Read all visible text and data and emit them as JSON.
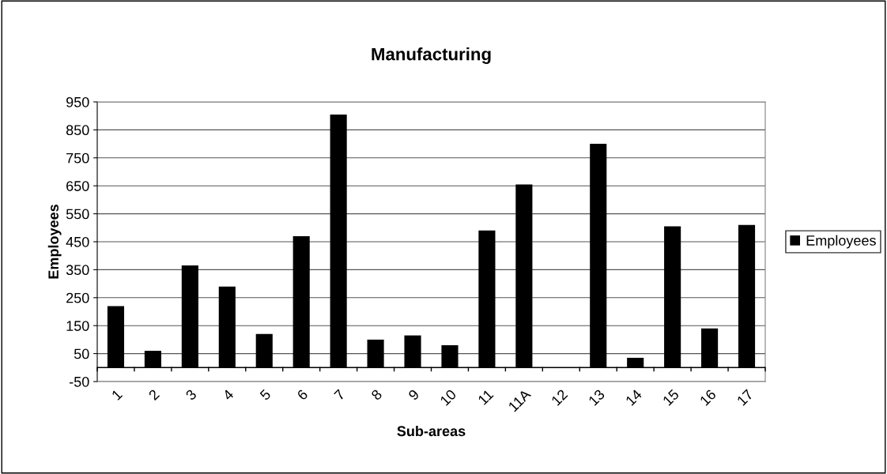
{
  "chart_data": {
    "type": "bar",
    "title": "Manufacturing",
    "xlabel": "Sub-areas",
    "ylabel": "Employees",
    "categories": [
      "1",
      "2",
      "3",
      "4",
      "5",
      "6",
      "7",
      "8",
      "9",
      "10",
      "11",
      "11A",
      "12",
      "13",
      "14",
      "15",
      "16",
      "17"
    ],
    "series": [
      {
        "name": "Employees",
        "color": "#000000",
        "values": [
          220,
          60,
          365,
          290,
          120,
          470,
          905,
          100,
          115,
          80,
          490,
          655,
          0,
          800,
          35,
          505,
          140,
          510
        ]
      }
    ],
    "ylim": [
      -50,
      950
    ],
    "yticks": [
      -50,
      50,
      150,
      250,
      350,
      450,
      550,
      650,
      750,
      850,
      950
    ],
    "grid": "y",
    "legend": "right"
  }
}
